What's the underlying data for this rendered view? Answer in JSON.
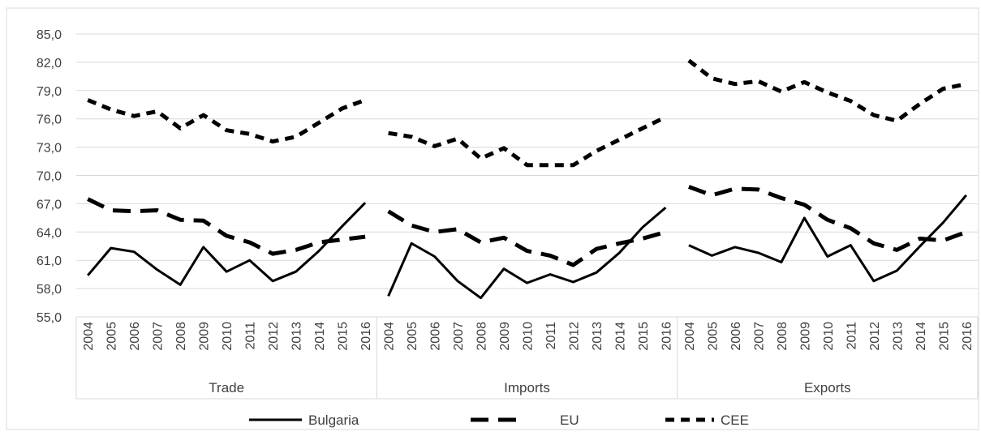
{
  "chart_data": {
    "type": "line",
    "title": "",
    "xlabel": "",
    "ylabel": "",
    "ylim": [
      55,
      85
    ],
    "yticks": [
      "55,0",
      "58,0",
      "61,0",
      "64,0",
      "67,0",
      "70,0",
      "73,0",
      "76,0",
      "79,0",
      "82,0",
      "85,0"
    ],
    "ytick_values": [
      55,
      58,
      61,
      64,
      67,
      70,
      73,
      76,
      79,
      82,
      85
    ],
    "grid": true,
    "legend_position": "bottom",
    "years": [
      "2004",
      "2005",
      "2006",
      "2007",
      "2008",
      "2009",
      "2010",
      "2011",
      "2012",
      "2013",
      "2014",
      "2015",
      "2016"
    ],
    "groups": [
      {
        "label": "Trade",
        "series": [
          {
            "name": "Bulgaria",
            "values": [
              59.4,
              62.3,
              61.9,
              60.0,
              58.4,
              62.4,
              59.8,
              61.0,
              58.8,
              59.8,
              62.0,
              64.6,
              67.1
            ]
          },
          {
            "name": "EU",
            "values": [
              67.5,
              66.3,
              66.2,
              66.3,
              65.3,
              65.2,
              63.6,
              62.9,
              61.7,
              62.1,
              62.9,
              63.2,
              63.5
            ]
          },
          {
            "name": "CEE",
            "values": [
              78.0,
              77.0,
              76.3,
              76.8,
              75.0,
              76.4,
              74.8,
              74.4,
              73.6,
              74.1,
              75.6,
              77.1,
              78.0
            ]
          }
        ]
      },
      {
        "label": "Imports",
        "series": [
          {
            "name": "Bulgaria",
            "values": [
              57.2,
              62.8,
              61.4,
              58.8,
              57.0,
              60.1,
              58.6,
              59.5,
              58.7,
              59.7,
              61.8,
              64.5,
              66.6
            ]
          },
          {
            "name": "EU",
            "values": [
              66.2,
              64.7,
              64.0,
              64.3,
              62.9,
              63.4,
              62.0,
              61.5,
              60.5,
              62.2,
              62.8,
              63.3,
              64.0
            ]
          },
          {
            "name": "CEE",
            "values": [
              74.5,
              74.1,
              73.1,
              73.9,
              71.8,
              72.9,
              71.1,
              71.1,
              71.1,
              72.6,
              73.8,
              75.0,
              76.2
            ]
          }
        ]
      },
      {
        "label": "Exports",
        "series": [
          {
            "name": "Bulgaria",
            "values": [
              62.6,
              61.5,
              62.4,
              61.8,
              60.8,
              65.5,
              61.4,
              62.6,
              58.8,
              59.9,
              62.5,
              65.0,
              67.9
            ]
          },
          {
            "name": "EU",
            "values": [
              68.8,
              67.9,
              68.6,
              68.5,
              67.6,
              66.9,
              65.3,
              64.4,
              62.8,
              62.1,
              63.3,
              63.1,
              64.0
            ]
          },
          {
            "name": "CEE",
            "values": [
              82.2,
              80.3,
              79.7,
              80.0,
              78.9,
              79.9,
              78.8,
              77.9,
              76.4,
              75.8,
              77.6,
              79.2,
              79.7
            ]
          }
        ]
      }
    ],
    "legend": [
      {
        "name": "Bulgaria",
        "style": "solid-thin"
      },
      {
        "name": "EU",
        "style": "dashed-thick"
      },
      {
        "name": "CEE",
        "style": "dashed"
      }
    ],
    "colors": {
      "line": "#000000",
      "grid": "#d9d9d9",
      "text": "#404040",
      "border": "#d9d9d9"
    }
  }
}
